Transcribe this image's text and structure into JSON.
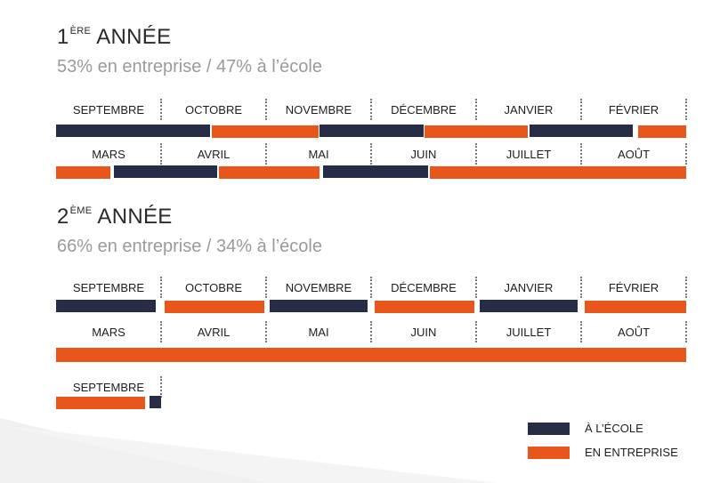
{
  "colors": {
    "ecole": "#272c46",
    "entreprise": "#e8561b",
    "background_shape": "#f0f0f0"
  },
  "months_row1": [
    "SEPTEMBRE",
    "OCTOBRE",
    "NOVEMBRE",
    "DÉCEMBRE",
    "JANVIER",
    "FÉVRIER"
  ],
  "months_row2": [
    "MARS",
    "AVRIL",
    "MAI",
    "JUIN",
    "JUILLET",
    "AOÛT"
  ],
  "years": [
    {
      "title_num": "1",
      "title_sup": "ÈRE",
      "title_rest": "ANNÉE",
      "subtitle": "53% en entreprise / 47% à l’école",
      "row1_segments": [
        {
          "kind": "ecole",
          "start_month": 0,
          "end_month": 1.47
        },
        {
          "kind": "entreprise",
          "start_month": 1.48,
          "end_month": 2.5
        },
        {
          "kind": "ecole",
          "start_month": 2.51,
          "end_month": 3.5
        },
        {
          "kind": "entreprise",
          "start_month": 3.51,
          "end_month": 4.49
        },
        {
          "kind": "ecole",
          "start_month": 4.51,
          "end_month": 5.49
        },
        {
          "kind": "entreprise",
          "start_month": 5.54,
          "end_month": 6.0
        }
      ],
      "row2_segments": [
        {
          "kind": "entreprise",
          "start_month": 0,
          "end_month": 0.52
        },
        {
          "kind": "ecole",
          "start_month": 0.55,
          "end_month": 1.53
        },
        {
          "kind": "entreprise",
          "start_month": 1.55,
          "end_month": 2.51
        },
        {
          "kind": "ecole",
          "start_month": 2.54,
          "end_month": 3.54
        },
        {
          "kind": "entreprise",
          "start_month": 3.56,
          "end_month": 6.0
        }
      ]
    },
    {
      "title_num": "2",
      "title_sup": "ÈME",
      "title_rest": "ANNÉE",
      "subtitle": "66% en entreprise / 34% à l’école",
      "row1_segments": [
        {
          "kind": "ecole",
          "start_month": 0,
          "end_month": 0.95
        },
        {
          "kind": "entreprise",
          "start_month": 1.03,
          "end_month": 1.98
        },
        {
          "kind": "ecole",
          "start_month": 2.03,
          "end_month": 2.97
        },
        {
          "kind": "entreprise",
          "start_month": 3.03,
          "end_month": 3.98
        },
        {
          "kind": "ecole",
          "start_month": 4.03,
          "end_month": 4.97
        },
        {
          "kind": "entreprise",
          "start_month": 5.03,
          "end_month": 6.0
        }
      ],
      "row2_segments": [
        {
          "kind": "entreprise",
          "start_month": 0,
          "end_month": 6.0
        }
      ],
      "row3_month": "SEPTEMBRE",
      "row3_segments": [
        {
          "kind": "entreprise",
          "start_month": 0,
          "end_month": 0.85
        },
        {
          "kind": "ecole",
          "start_month": 0.89,
          "end_month": 1.0
        }
      ]
    }
  ],
  "legend": [
    {
      "kind": "ecole",
      "label": "À L’ÉCOLE"
    },
    {
      "kind": "entreprise",
      "label": "EN ENTREPRISE"
    }
  ]
}
